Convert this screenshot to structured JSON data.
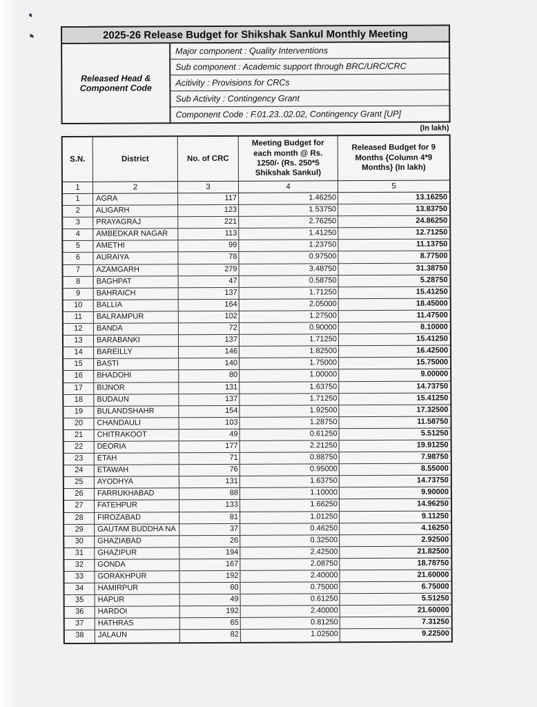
{
  "title": "2025-26 Release Budget for Shikshak Sankul Monthly Meeting",
  "released_head": {
    "label": "Released Head & Component Code",
    "rows": [
      "Major component : Quality Interventions",
      "Sub component : Academic support through BRC/URC/CRC",
      "Acitivity : Provisions for CRCs",
      "Sub Activity : Contingency Grant",
      "Component Code : F.01.23..02.02, Contingency Grant [UP]"
    ]
  },
  "in_lakh_note": "(In lakh)",
  "table": {
    "headers": [
      "S.N.",
      "District",
      "No. of CRC",
      "Meeting Budget for each month @ Rs. 1250/- (Rs. 250*5 Shikshak Sankul)",
      "Released Budget for 9 Months {Column 4*9 Months} (In lakh)"
    ],
    "column_numbers": [
      "1",
      "2",
      "3",
      "4",
      "5"
    ],
    "rows": [
      [
        "1",
        "AGRA",
        "117",
        "1.46250",
        "13.16250"
      ],
      [
        "2",
        "ALIGARH",
        "123",
        "1.53750",
        "13.83750"
      ],
      [
        "3",
        "PRAYAGRAJ",
        "221",
        "2.76250",
        "24.86250"
      ],
      [
        "4",
        "AMBEDKAR NAGAR",
        "113",
        "1.41250",
        "12.71250"
      ],
      [
        "5",
        "AMETHI",
        "99",
        "1.23750",
        "11.13750"
      ],
      [
        "6",
        "AURAIYA",
        "78",
        "0.97500",
        "8.77500"
      ],
      [
        "7",
        "AZAMGARH",
        "279",
        "3.48750",
        "31.38750"
      ],
      [
        "8",
        "BAGHPAT",
        "47",
        "0.58750",
        "5.28750"
      ],
      [
        "9",
        "BAHRAICH",
        "137",
        "1.71250",
        "15.41250"
      ],
      [
        "10",
        "BALLIA",
        "164",
        "2.05000",
        "18.45000"
      ],
      [
        "11",
        "BALRAMPUR",
        "102",
        "1.27500",
        "11.47500"
      ],
      [
        "12",
        "BANDA",
        "72",
        "0.90000",
        "8.10000"
      ],
      [
        "13",
        "BARABANKI",
        "137",
        "1.71250",
        "15.41250"
      ],
      [
        "14",
        "BAREILLY",
        "146",
        "1.82500",
        "16.42500"
      ],
      [
        "15",
        "BASTI",
        "140",
        "1.75000",
        "15.75000"
      ],
      [
        "16",
        "BHADOHI",
        "80",
        "1.00000",
        "9.00000"
      ],
      [
        "17",
        "BIJNOR",
        "131",
        "1.63750",
        "14.73750"
      ],
      [
        "18",
        "BUDAUN",
        "137",
        "1.71250",
        "15.41250"
      ],
      [
        "19",
        "BULANDSHAHR",
        "154",
        "1.92500",
        "17.32500"
      ],
      [
        "20",
        "CHANDAULI",
        "103",
        "1.28750",
        "11.58750"
      ],
      [
        "21",
        "CHITRAKOOT",
        "49",
        "0.61250",
        "5.51250"
      ],
      [
        "22",
        "DEORIA",
        "177",
        "2.21250",
        "19.91250"
      ],
      [
        "23",
        "ETAH",
        "71",
        "0.88750",
        "7.98750"
      ],
      [
        "24",
        "ETAWAH",
        "76",
        "0.95000",
        "8.55000"
      ],
      [
        "25",
        "AYODHYA",
        "131",
        "1.63750",
        "14.73750"
      ],
      [
        "26",
        "FARRUKHABAD",
        "88",
        "1.10000",
        "9.90000"
      ],
      [
        "27",
        "FATEHPUR",
        "133",
        "1.66250",
        "14.96250"
      ],
      [
        "28",
        "FIROZABAD",
        "81",
        "1.01250",
        "9.11250"
      ],
      [
        "29",
        "GAUTAM BUDDHA NA",
        "37",
        "0.46250",
        "4.16250"
      ],
      [
        "30",
        "GHAZIABAD",
        "26",
        "0.32500",
        "2.92500"
      ],
      [
        "31",
        "GHAZIPUR",
        "194",
        "2.42500",
        "21.82500"
      ],
      [
        "32",
        "GONDA",
        "167",
        "2.08750",
        "18.78750"
      ],
      [
        "33",
        "GORAKHPUR",
        "192",
        "2.40000",
        "21.60000"
      ],
      [
        "34",
        "HAMIRPUR",
        "60",
        "0.75000",
        "6.75000"
      ],
      [
        "35",
        "HAPUR",
        "49",
        "0.61250",
        "5.51250"
      ],
      [
        "36",
        "HARDOI",
        "192",
        "2.40000",
        "21.60000"
      ],
      [
        "37",
        "HATHRAS",
        "65",
        "0.81250",
        "7.31250"
      ],
      [
        "38",
        "JALAUN",
        "82",
        "1.02500",
        "9.22500"
      ]
    ]
  },
  "colors": {
    "paper": "#f1f0f2",
    "title_bar_fill": "#d5d4d6",
    "border": "#1f1f1f",
    "text": "#141414"
  }
}
